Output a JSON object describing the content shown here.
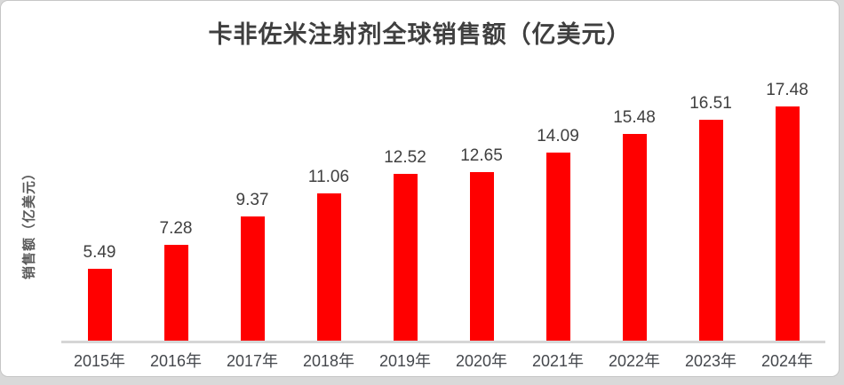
{
  "page": {
    "background_color": "#d9d9d9",
    "card_background": "#ffffff",
    "card_border_color": "#c6c6c6"
  },
  "chart_data": {
    "type": "bar",
    "title": "卡非佐米注射剂全球销售额（亿美元）",
    "ylabel": "销售额（亿美元）",
    "xlabel": "",
    "categories": [
      "2015年",
      "2016年",
      "2017年",
      "2018年",
      "2019年",
      "2020年",
      "2021年",
      "2022年",
      "2023年",
      "2024年"
    ],
    "values": [
      5.49,
      7.28,
      9.37,
      11.06,
      12.52,
      12.65,
      14.09,
      15.48,
      16.51,
      17.48
    ],
    "data_labels": [
      "5.49",
      "7.28",
      "9.37",
      "11.06",
      "12.52",
      "12.65",
      "14.09",
      "15.48",
      "16.51",
      "17.48"
    ],
    "ylim": [
      0,
      20
    ],
    "grid": false,
    "legend": "none",
    "bar_color": "#ff0000",
    "data_label_color": "#404040",
    "title_color": "#3f3f3f",
    "axis_label_color": "#44474c",
    "y_title_color": "#595959",
    "axis_line_color": "#d6d6d6"
  }
}
